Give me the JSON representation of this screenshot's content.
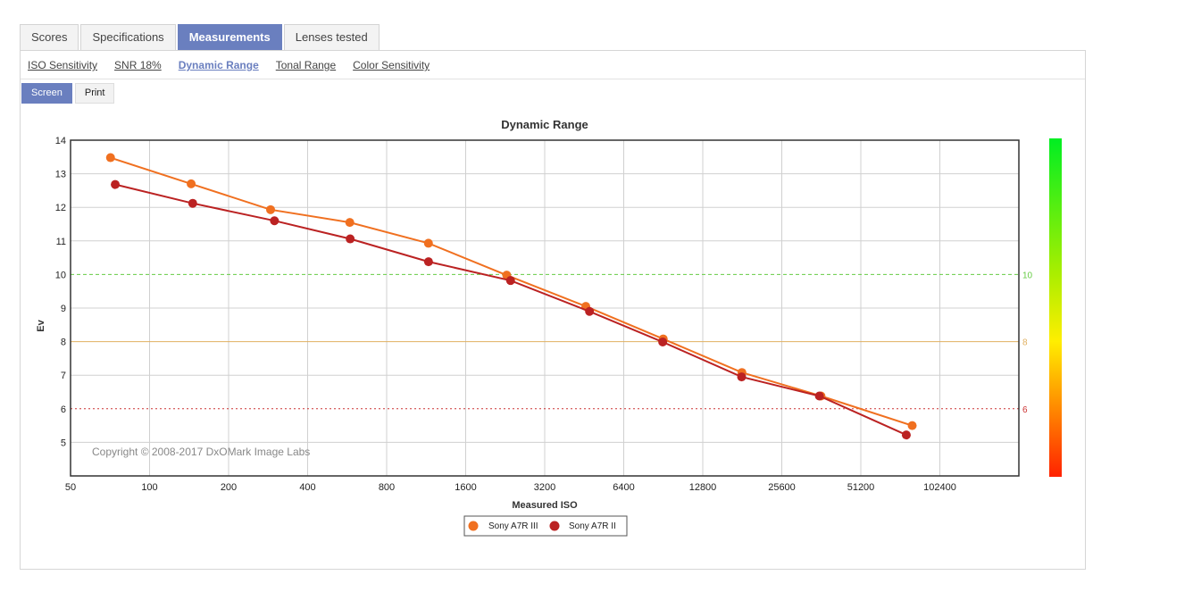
{
  "tabs": [
    {
      "label": "Scores",
      "active": false
    },
    {
      "label": "Specifications",
      "active": false
    },
    {
      "label": "Measurements",
      "active": true
    },
    {
      "label": "Lenses tested",
      "active": false
    }
  ],
  "subnav": [
    {
      "label": "ISO Sensitivity",
      "active": false
    },
    {
      "label": "SNR 18%",
      "active": false
    },
    {
      "label": "Dynamic Range",
      "active": true
    },
    {
      "label": "Tonal Range",
      "active": false
    },
    {
      "label": "Color Sensitivity",
      "active": false
    }
  ],
  "modes": [
    {
      "label": "Screen",
      "active": true
    },
    {
      "label": "Print",
      "active": false
    }
  ],
  "chart_data": {
    "type": "line",
    "title": "Dynamic Range",
    "xlabel": "Measured ISO",
    "ylabel": "Ev",
    "x_scale": "log2",
    "xlim": [
      50,
      204800
    ],
    "ylim": [
      4,
      14
    ],
    "x_ticks": [
      50,
      100,
      200,
      400,
      800,
      1600,
      3200,
      6400,
      12800,
      25600,
      51200,
      102400
    ],
    "y_ticks": [
      5,
      6,
      7,
      8,
      9,
      10,
      11,
      12,
      13,
      14
    ],
    "grid": true,
    "reference_lines": [
      {
        "value": 10,
        "label": "10",
        "color": "#66cc44",
        "style": "dashed"
      },
      {
        "value": 8,
        "label": "8",
        "color": "#e0b060",
        "style": "solid"
      },
      {
        "value": 6,
        "label": "6",
        "color": "#cc3333",
        "style": "dotted"
      }
    ],
    "annotation": "Copyright © 2008-2017 DxOMark Image Labs",
    "legend_position": "bottom-center",
    "series": [
      {
        "name": "Sony A7R III",
        "color": "#f07020",
        "points": [
          [
            71,
            13.48
          ],
          [
            144,
            12.7
          ],
          [
            289,
            11.93
          ],
          [
            579,
            11.55
          ],
          [
            1154,
            10.93
          ],
          [
            2293,
            9.98
          ],
          [
            4589,
            9.05
          ],
          [
            9049,
            8.08
          ],
          [
            18046,
            7.08
          ],
          [
            36117,
            6.38
          ],
          [
            80350,
            5.5
          ]
        ]
      },
      {
        "name": "Sony A7R II",
        "color": "#bb2222",
        "points": [
          [
            74,
            12.68
          ],
          [
            146,
            12.12
          ],
          [
            299,
            11.6
          ],
          [
            581,
            11.06
          ],
          [
            1155,
            10.38
          ],
          [
            2372,
            9.82
          ],
          [
            4740,
            8.9
          ],
          [
            9008,
            7.99
          ],
          [
            17998,
            6.95
          ],
          [
            35600,
            6.38
          ],
          [
            76300,
            5.22
          ]
        ]
      }
    ]
  }
}
